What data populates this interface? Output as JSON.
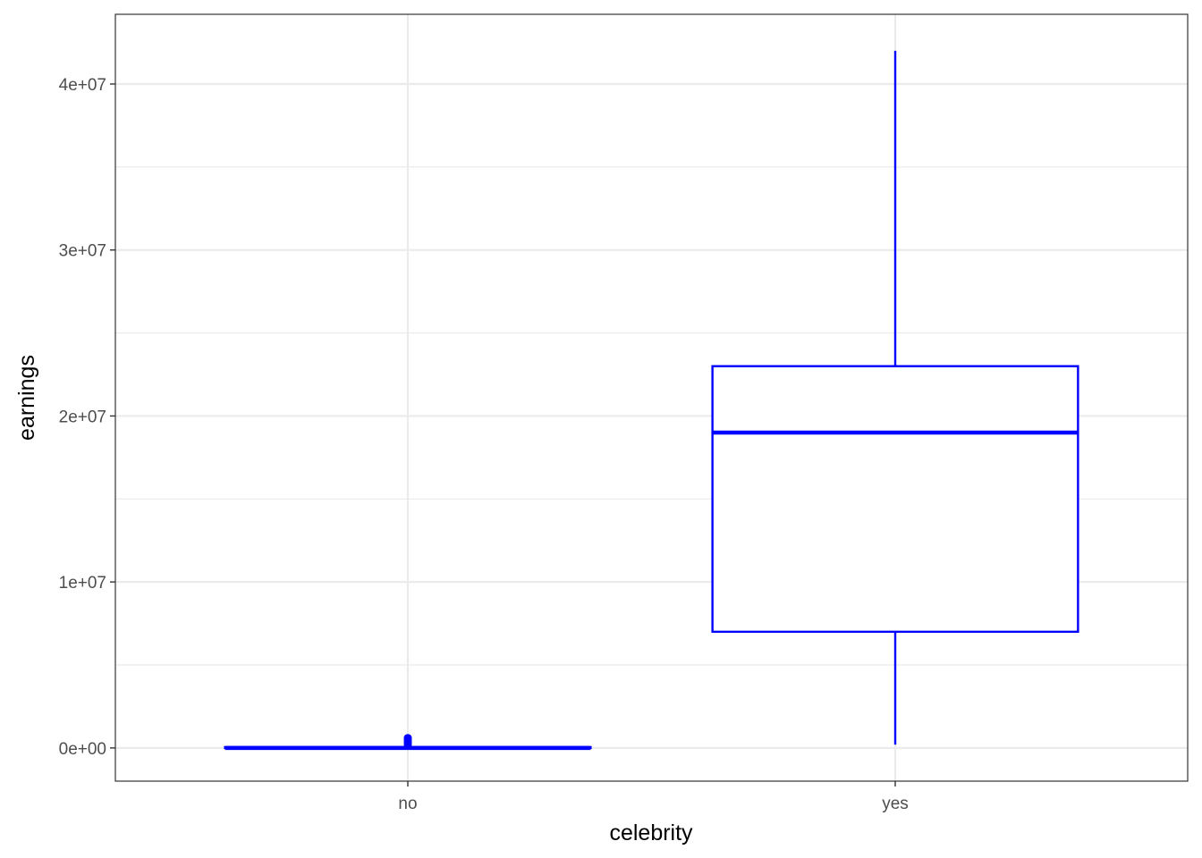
{
  "chart_data": {
    "type": "box",
    "xlabel": "celebrity",
    "ylabel": "earnings",
    "categories": [
      "no",
      "yes"
    ],
    "ylim": [
      -2000000,
      44200000
    ],
    "y_ticks": [
      0,
      10000000,
      20000000,
      30000000,
      40000000
    ],
    "y_tick_labels": [
      "0e+00",
      "1e+07",
      "2e+07",
      "3e+07",
      "4e+07"
    ],
    "boxes": [
      {
        "category": "no",
        "lower_whisker": 0,
        "q1": 0,
        "median": 0,
        "q3": 50000,
        "upper_whisker": 100000,
        "outliers": [
          200000,
          300000,
          400000,
          500000,
          600000
        ]
      },
      {
        "category": "yes",
        "lower_whisker": 200000,
        "q1": 7000000,
        "median": 19000000,
        "q3": 23000000,
        "upper_whisker": 42000000,
        "outliers": []
      }
    ],
    "grid": true,
    "colors": {
      "box": "#0000ff",
      "grid": "#ebebeb",
      "panel_border": "#333333"
    }
  }
}
